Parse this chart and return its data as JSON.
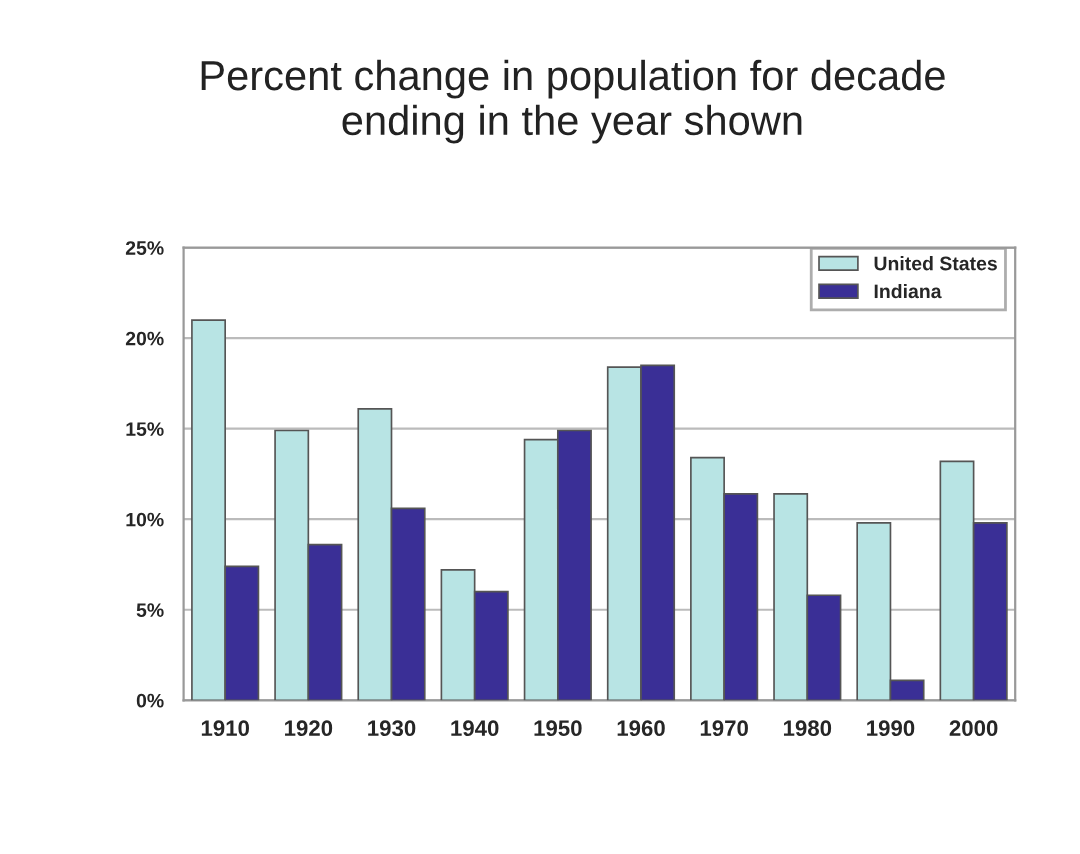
{
  "chart_data": {
    "type": "bar",
    "title": "Percent change in population for decade\nending in the year shown",
    "categories": [
      "1910",
      "1920",
      "1930",
      "1940",
      "1950",
      "1960",
      "1970",
      "1980",
      "1990",
      "2000"
    ],
    "series": [
      {
        "name": "United States",
        "color": "#b8e4e4",
        "values": [
          21.0,
          14.9,
          16.1,
          7.2,
          14.4,
          18.4,
          13.4,
          11.4,
          9.8,
          13.2
        ]
      },
      {
        "name": "Indiana",
        "color": "#3a2f96",
        "values": [
          7.4,
          8.6,
          10.6,
          6.0,
          14.9,
          18.5,
          11.4,
          5.8,
          1.1,
          9.8
        ]
      }
    ],
    "ylim": [
      0,
      25
    ],
    "yticks": [
      {
        "value": 0,
        "label": "0%"
      },
      {
        "value": 5,
        "label": "5%"
      },
      {
        "value": 10,
        "label": "10%"
      },
      {
        "value": 15,
        "label": "15%"
      },
      {
        "value": 20,
        "label": "20%"
      },
      {
        "value": 25,
        "label": "25%"
      }
    ],
    "grid": "y",
    "legend": "top right"
  }
}
